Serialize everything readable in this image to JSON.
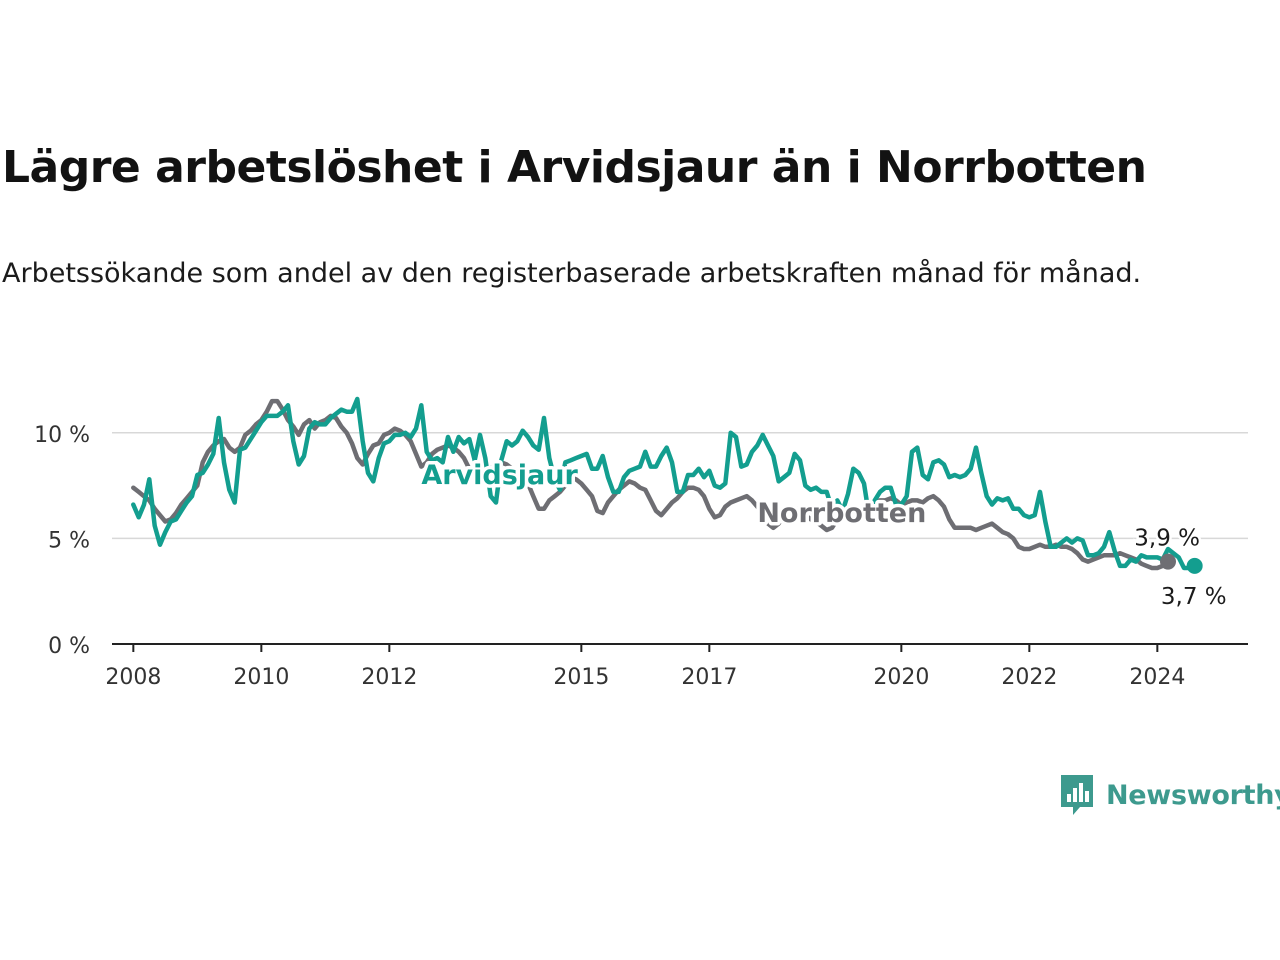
{
  "header": {
    "title": "Lägre arbetslöshet i Arvidsjaur än i Norrbotten",
    "subtitle": "Arbetssökande som andel av den registerbaserade arbetskraften månad för månad."
  },
  "logo": {
    "text": "Newsworthy",
    "icon": "newsworthy-chart-icon",
    "color": "#3d9a8e"
  },
  "chart_data": {
    "type": "line",
    "title": "Lägre arbetslöshet i Arvidsjaur än i Norrbotten",
    "subtitle": "Arbetssökande som andel av den registerbaserade arbetskraften månad för månad.",
    "x_axis": {
      "type": "date",
      "range": [
        "2007-09",
        "2025-06"
      ],
      "ticks": [
        {
          "value": "2008-01",
          "label": "2008"
        },
        {
          "value": "2010-01",
          "label": "2010"
        },
        {
          "value": "2012-01",
          "label": "2012"
        },
        {
          "value": "2015-01",
          "label": "2015"
        },
        {
          "value": "2017-01",
          "label": "2017"
        },
        {
          "value": "2020-01",
          "label": "2020"
        },
        {
          "value": "2022-01",
          "label": "2022"
        },
        {
          "value": "2024-01",
          "label": "2024"
        }
      ]
    },
    "y_axis": {
      "range": [
        0,
        12.5
      ],
      "ticks": [
        {
          "value": 0,
          "label": "0 %"
        },
        {
          "value": 5,
          "label": "5 %"
        },
        {
          "value": 10,
          "label": "10 %"
        }
      ]
    },
    "grid": "horizontal",
    "legend": "inline labels",
    "series": [
      {
        "name": "Norrbotten",
        "color": "#6e6e73",
        "start": "2008-01",
        "frequency": "monthly",
        "values": [
          7.4,
          7.2,
          7.0,
          6.8,
          6.4,
          6.1,
          5.8,
          5.9,
          6.2,
          6.6,
          6.9,
          7.2,
          7.5,
          8.6,
          9.1,
          9.4,
          9.6,
          9.7,
          9.3,
          9.1,
          9.3,
          9.9,
          10.1,
          10.4,
          10.6,
          11.0,
          11.5,
          11.5,
          11.1,
          10.6,
          10.3,
          9.9,
          10.4,
          10.6,
          10.2,
          10.5,
          10.6,
          10.8,
          10.7,
          10.3,
          10.0,
          9.5,
          8.8,
          8.5,
          9.0,
          9.4,
          9.5,
          9.9,
          10.0,
          10.2,
          10.1,
          9.9,
          9.6,
          9.0,
          8.4,
          8.6,
          9.0,
          9.2,
          9.3,
          9.4,
          9.3,
          9.1,
          8.8,
          8.3,
          7.7,
          7.6,
          8.0,
          8.3,
          8.5,
          8.6,
          8.5,
          8.3,
          8.2,
          8.0,
          7.6,
          7.0,
          6.4,
          6.4,
          6.8,
          7.0,
          7.2,
          7.5,
          7.9,
          7.8,
          7.6,
          7.3,
          7.0,
          6.3,
          6.2,
          6.7,
          7.0,
          7.3,
          7.5,
          7.7,
          7.6,
          7.4,
          7.3,
          6.8,
          6.3,
          6.1,
          6.4,
          6.7,
          6.9,
          7.2,
          7.4,
          7.4,
          7.3,
          7.0,
          6.4,
          6.0,
          6.1,
          6.5,
          6.7,
          6.8,
          6.9,
          7.0,
          6.8,
          6.5,
          6.2,
          5.7,
          5.5,
          5.7,
          6.1,
          6.3,
          6.4,
          6.4,
          6.1,
          5.9,
          5.8,
          5.6,
          5.4,
          5.5,
          5.9,
          6.1,
          6.3,
          6.4,
          6.4,
          6.5,
          6.6,
          6.7,
          6.8,
          6.8,
          6.9,
          6.8,
          6.6,
          6.7,
          6.8,
          6.8,
          6.7,
          6.9,
          7.0,
          6.8,
          6.5,
          5.9,
          5.5,
          5.5,
          5.5,
          5.5,
          5.4,
          5.5,
          5.6,
          5.7,
          5.5,
          5.3,
          5.2,
          5.0,
          4.6,
          4.5,
          4.5,
          4.6,
          4.7,
          4.6,
          4.6,
          4.7,
          4.6,
          4.6,
          4.5,
          4.3,
          4.0,
          3.9,
          4.0,
          4.1,
          4.2,
          4.2,
          4.2,
          4.3,
          4.2,
          4.1,
          4.0,
          3.8,
          3.7,
          3.6,
          3.6,
          3.7,
          3.9
        ],
        "last_label": "3,9 %"
      },
      {
        "name": "Arvidsjaur",
        "color": "#139e8f",
        "start": "2008-01",
        "frequency": "monthly",
        "values": [
          6.6,
          6.0,
          6.6,
          7.8,
          5.6,
          4.7,
          5.3,
          5.8,
          5.9,
          6.3,
          6.7,
          7.0,
          8.0,
          8.1,
          8.5,
          9.0,
          10.7,
          8.6,
          7.3,
          6.7,
          9.2,
          9.3,
          9.7,
          10.1,
          10.5,
          10.8,
          10.8,
          10.8,
          11.0,
          11.3,
          9.6,
          8.5,
          8.9,
          10.2,
          10.5,
          10.4,
          10.4,
          10.7,
          10.9,
          11.1,
          11.0,
          11.0,
          11.6,
          9.6,
          8.1,
          7.7,
          8.8,
          9.5,
          9.6,
          9.9,
          9.9,
          10.0,
          9.8,
          10.2,
          11.3,
          9.1,
          8.7,
          8.8,
          8.6,
          9.8,
          9.1,
          9.8,
          9.5,
          9.7,
          8.7,
          9.9,
          8.8,
          7.0,
          6.7,
          8.7,
          9.6,
          9.4,
          9.6,
          10.1,
          9.8,
          9.4,
          9.2,
          10.7,
          8.8,
          7.8,
          7.3,
          8.6,
          8.7,
          8.8,
          8.9,
          9.0,
          8.3,
          8.3,
          8.9,
          7.9,
          7.2,
          7.2,
          7.9,
          8.2,
          8.3,
          8.4,
          9.1,
          8.4,
          8.4,
          8.9,
          9.3,
          8.6,
          7.2,
          7.2,
          8.0,
          8.0,
          8.3,
          7.9,
          8.2,
          7.5,
          7.4,
          7.6,
          10.0,
          9.8,
          8.4,
          8.5,
          9.1,
          9.4,
          9.9,
          9.4,
          8.9,
          7.7,
          7.9,
          8.1,
          9.0,
          8.7,
          7.5,
          7.3,
          7.4,
          7.2,
          7.2,
          6.4,
          6.8,
          6.3,
          7.1,
          8.3,
          8.1,
          7.6,
          6.0,
          6.8,
          7.2,
          7.4,
          7.4,
          6.6,
          6.6,
          7.0,
          9.1,
          9.3,
          8.0,
          7.8,
          8.6,
          8.7,
          8.5,
          7.9,
          8.0,
          7.9,
          8.0,
          8.3,
          9.3,
          8.1,
          7.0,
          6.6,
          6.9,
          6.8,
          6.9,
          6.4,
          6.4,
          6.1,
          6.0,
          6.1,
          7.2,
          5.8,
          4.6,
          4.6,
          4.8,
          5.0,
          4.8,
          5.0,
          4.9,
          4.2,
          4.2,
          4.3,
          4.6,
          5.3,
          4.4,
          3.7,
          3.7,
          4.0,
          3.9,
          4.2,
          4.1,
          4.1,
          4.1,
          4.0,
          4.5,
          4.3,
          4.1,
          3.6,
          3.6,
          3.7
        ],
        "last_label": "3,7 %"
      }
    ]
  }
}
